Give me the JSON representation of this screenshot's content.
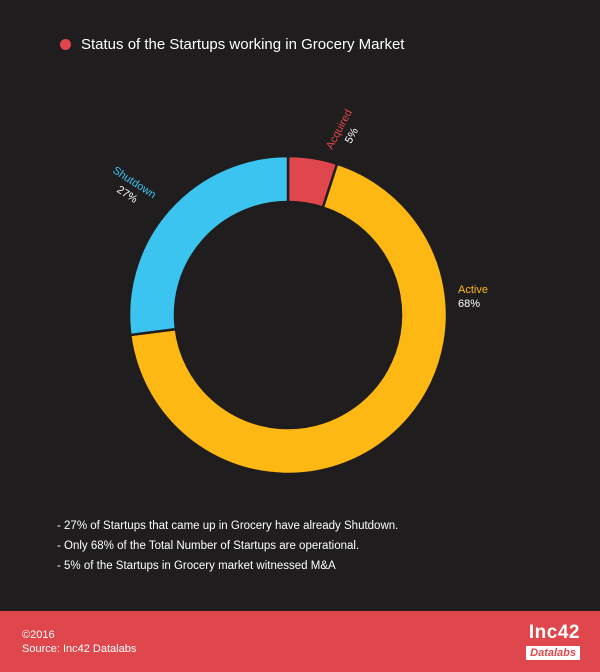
{
  "title": "Status of the Startups working in Grocery Market",
  "colors": {
    "background": "#1f1d1e",
    "accent": "#e0474c",
    "active": "#fdb813",
    "shutdown": "#3cc4f0",
    "acquired": "#e0474c"
  },
  "chart_data": {
    "type": "pie",
    "variant": "donut",
    "categories": [
      "Acquired",
      "Active",
      "Shutdown"
    ],
    "values": [
      5,
      68,
      27
    ],
    "labels": [
      {
        "name": "Acquired",
        "value_label": "5%",
        "color": "#e0474c"
      },
      {
        "name": "Active",
        "value_label": "68%",
        "color": "#fdb813"
      },
      {
        "name": "Shutdown",
        "value_label": "27%",
        "color": "#3cc4f0"
      }
    ]
  },
  "notes": [
    "- 27% of Startups that came up in Grocery have already Shutdown.",
    "- Only 68% of the Total Number of Startups are operational.",
    "- 5% of the Startups in Grocery market witnessed M&A"
  ],
  "footer": {
    "copyright": "©2016",
    "source": "Source: Inc42 Datalabs",
    "logo_top": "Inc42",
    "logo_bottom": "Datalabs"
  }
}
